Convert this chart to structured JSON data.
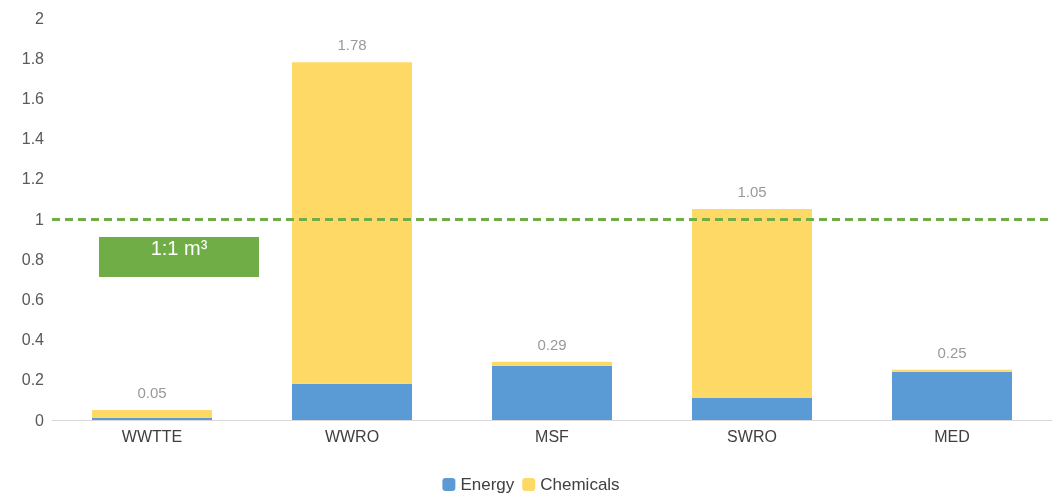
{
  "chart_data": {
    "type": "bar",
    "stacked": true,
    "categories": [
      "WWTTE",
      "WWRO",
      "MSF",
      "SWRO",
      "MED"
    ],
    "series": [
      {
        "name": "Energy",
        "color": "#5b9bd5",
        "values": [
          0.01,
          0.18,
          0.27,
          0.11,
          0.24
        ]
      },
      {
        "name": "Chemicals",
        "color": "#ffd966",
        "values": [
          0.04,
          1.6,
          0.02,
          0.94,
          0.01
        ]
      }
    ],
    "totals": [
      "0.05",
      "1.78",
      "0.29",
      "1.05",
      "0.25"
    ],
    "ylim": [
      0,
      2
    ],
    "yticks": [
      0,
      0.2,
      0.4,
      0.6,
      0.8,
      1,
      1.2,
      1.4,
      1.6,
      1.8,
      2
    ],
    "ref_lines": [
      {
        "axis": "y",
        "value": 1,
        "label": "1:1 m³",
        "color": "#70ad47",
        "line_style": "dashed"
      }
    ],
    "grid": false,
    "legend": "bottom"
  }
}
